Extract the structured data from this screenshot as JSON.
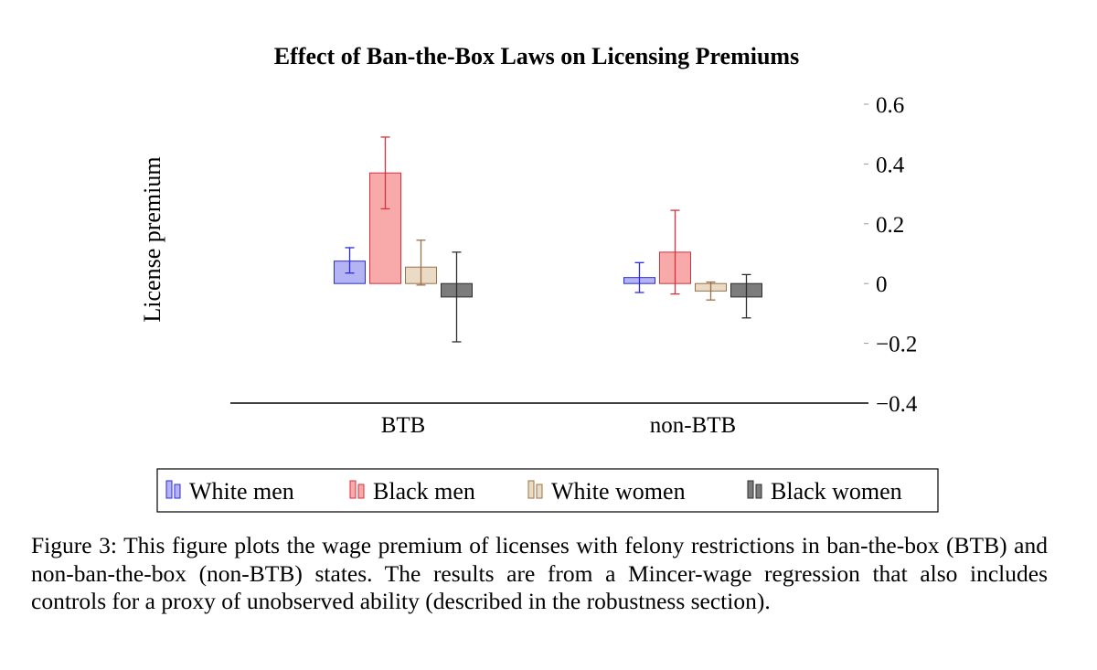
{
  "chart_data": {
    "type": "bar",
    "title": "Effect of Ban-the-Box Laws on Licensing Premiums",
    "ylabel": "License premium",
    "xlabel": "",
    "ylim": [
      -0.4,
      0.6
    ],
    "yticks": [
      0.6,
      0.4,
      0.2,
      0,
      -0.2,
      -0.4
    ],
    "ytick_labels": [
      "0.6",
      "0.4",
      "0.2",
      "0",
      "−0.2",
      "−0.4"
    ],
    "categories": [
      "BTB",
      "non-BTB"
    ],
    "legend_position": "bottom",
    "error_bars": true,
    "series": [
      {
        "name": "White men",
        "values": [
          0.075,
          0.02
        ],
        "err_low": [
          0.035,
          -0.03
        ],
        "err_high": [
          0.12,
          0.07
        ],
        "fill": "#b4b4f5",
        "stroke": "#2a2ae0"
      },
      {
        "name": "Black men",
        "values": [
          0.37,
          0.105
        ],
        "err_low": [
          0.25,
          -0.035
        ],
        "err_high": [
          0.49,
          0.245
        ],
        "fill": "#f8aaaa",
        "stroke": "#d8303c"
      },
      {
        "name": "White women",
        "values": [
          0.055,
          -0.025
        ],
        "err_low": [
          -0.005,
          -0.055
        ],
        "err_high": [
          0.145,
          0.005
        ],
        "fill": "#eadbc6",
        "stroke": "#9c7046"
      },
      {
        "name": "Black women",
        "values": [
          -0.045,
          -0.045
        ],
        "err_low": [
          -0.195,
          -0.115
        ],
        "err_high": [
          0.105,
          0.03
        ],
        "fill": "#7c7c7c",
        "stroke": "#2e2e2e"
      }
    ]
  },
  "caption": "Figure 3: This figure plots the wage premium of licenses with felony restrictions in ban-the-box (BTB) and non-ban-the-box (non-BTB) states. The results are from a Mincer-wage regression that also includes controls for a proxy of unobserved ability (described in the robustness section)."
}
